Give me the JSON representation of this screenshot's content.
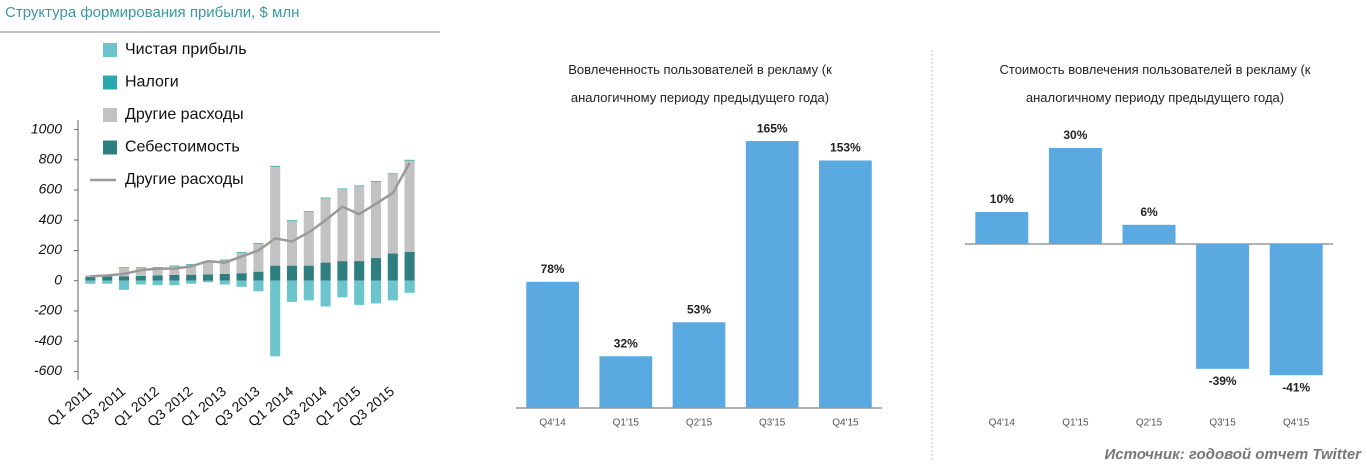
{
  "chart_data": [
    {
      "type": "bar",
      "stacked": true,
      "title": "Структура формирования прибыли, $ млн",
      "categories": [
        "Q1 2011",
        null,
        "Q3 2011",
        null,
        "Q1 2012",
        null,
        "Q3 2012",
        null,
        "Q1 2013",
        null,
        "Q3 2013",
        null,
        "Q1 2014",
        null,
        "Q3 2014",
        null,
        "Q1 2015",
        null,
        "Q3 2015",
        null
      ],
      "series": [
        {
          "name": "Чистая прибыль",
          "color": "#6cc5cc",
          "values": [
            -20,
            -20,
            -60,
            -25,
            -30,
            -30,
            -20,
            -10,
            -25,
            -40,
            -70,
            -500,
            -140,
            -130,
            -170,
            -110,
            -160,
            -150,
            -130,
            -80
          ]
        },
        {
          "name": "Налоги",
          "color": "#2aa8b0",
          "values": [
            3,
            3,
            4,
            4,
            5,
            5,
            5,
            5,
            5,
            5,
            5,
            5,
            5,
            5,
            5,
            5,
            5,
            5,
            5,
            5
          ]
        },
        {
          "name": "Другие расходы",
          "color": "#c2c2c2",
          "values": [
            7,
            9,
            56,
            54,
            50,
            57,
            65,
            83,
            90,
            135,
            185,
            655,
            295,
            355,
            425,
            475,
            495,
            505,
            525,
            605
          ]
        },
        {
          "name": "Себестоимость",
          "color": "#2f7f80",
          "values": [
            25,
            28,
            30,
            32,
            35,
            38,
            40,
            42,
            45,
            50,
            60,
            100,
            100,
            100,
            120,
            130,
            130,
            150,
            180,
            190
          ]
        },
        {
          "name": "Другие расходы",
          "color": "#9a9a9a",
          "type": "line",
          "values": [
            30,
            35,
            45,
            70,
            80,
            80,
            95,
            130,
            120,
            160,
            200,
            280,
            260,
            320,
            400,
            490,
            440,
            510,
            580,
            780
          ]
        }
      ],
      "ylim": [
        -650,
        1050
      ],
      "yticks": [
        1000,
        800,
        600,
        400,
        200,
        0,
        -200,
        -400,
        -600
      ]
    },
    {
      "type": "bar",
      "title": "Вовлеченность пользователей в рекламу (к аналогичному периоду предыдущего года)",
      "categories": [
        "Q4'14",
        "Q1'15",
        "Q2'15",
        "Q3'15",
        "Q4'15"
      ],
      "values": [
        78,
        32,
        53,
        165,
        153
      ],
      "value_labels": [
        "78%",
        "32%",
        "53%",
        "165%",
        "153%"
      ],
      "color": "#5aa9e1",
      "ylim": [
        0,
        170
      ]
    },
    {
      "type": "bar",
      "title": "Стоимость вовлечения пользователей в рекламу (к аналогичному периоду предыдущего года)",
      "categories": [
        "Q4'14",
        "Q1'15",
        "Q2'15",
        "Q3'15",
        "Q4'15"
      ],
      "values": [
        10,
        30,
        6,
        -39,
        -41
      ],
      "value_labels": [
        "10%",
        "30%",
        "6%",
        "-39%",
        "-41%"
      ],
      "color": "#5aa9e1",
      "ylim": [
        -45,
        35
      ]
    }
  ],
  "source": "Источник: годовой отчет Twitter"
}
